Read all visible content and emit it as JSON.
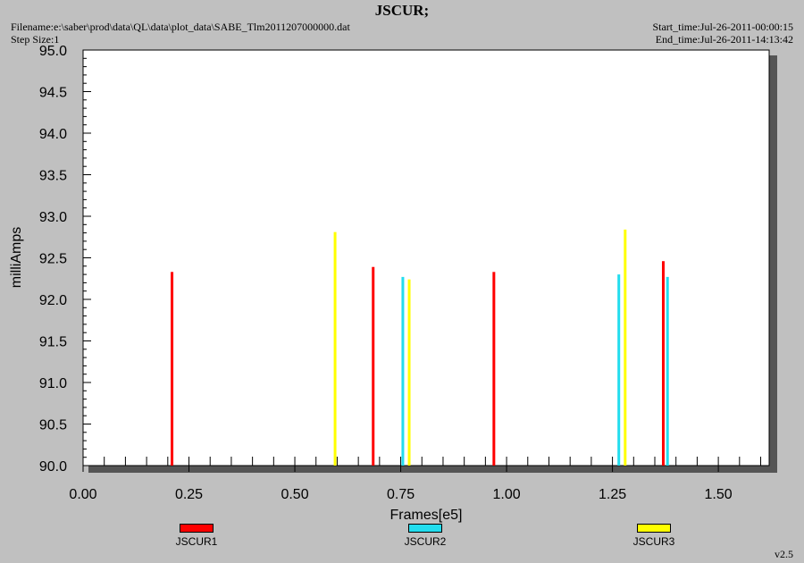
{
  "header": {
    "title": "JSCUR;",
    "filename": "Filename:e:\\saber\\prod\\data\\QL\\data\\plot_data\\SABE_Tlm2011207000000.dat",
    "step_size": "Step Size:1",
    "start_time": "Start_time:Jul-26-2011-00:00:15",
    "end_time": "End_time:Jul-26-2011-14:13:42"
  },
  "version": "v2.5",
  "colors": {
    "background": "#c0c0c0",
    "plot_bg": "#ffffff",
    "shadow": "#555555"
  },
  "chart_data": {
    "type": "bar",
    "title": "JSCUR;",
    "xlabel": "Frames[e5]",
    "ylabel": "milliAmps",
    "xlim": [
      0.0,
      1.62
    ],
    "ylim": [
      90.0,
      95.0
    ],
    "x_ticks": [
      "0.00",
      "0.25",
      "0.50",
      "0.75",
      "1.00",
      "1.25",
      "1.50"
    ],
    "y_ticks": [
      "90.0",
      "90.5",
      "91.0",
      "91.5",
      "92.0",
      "92.5",
      "93.0",
      "93.5",
      "94.0",
      "94.5",
      "95.0"
    ],
    "grid": false,
    "legend_position": "bottom",
    "series": [
      {
        "name": "JSCUR1",
        "color": "#ff0000",
        "points": [
          {
            "x": 0.21,
            "y": 92.33
          },
          {
            "x": 0.685,
            "y": 92.39
          },
          {
            "x": 0.97,
            "y": 92.33
          },
          {
            "x": 1.37,
            "y": 92.46
          }
        ]
      },
      {
        "name": "JSCUR2",
        "color": "#22ddee",
        "points": [
          {
            "x": 0.755,
            "y": 92.27
          },
          {
            "x": 1.265,
            "y": 92.3
          },
          {
            "x": 1.38,
            "y": 92.27
          }
        ]
      },
      {
        "name": "JSCUR3",
        "color": "#ffff00",
        "points": [
          {
            "x": 0.595,
            "y": 92.81
          },
          {
            "x": 0.77,
            "y": 92.24
          },
          {
            "x": 1.28,
            "y": 92.84
          }
        ]
      }
    ]
  }
}
